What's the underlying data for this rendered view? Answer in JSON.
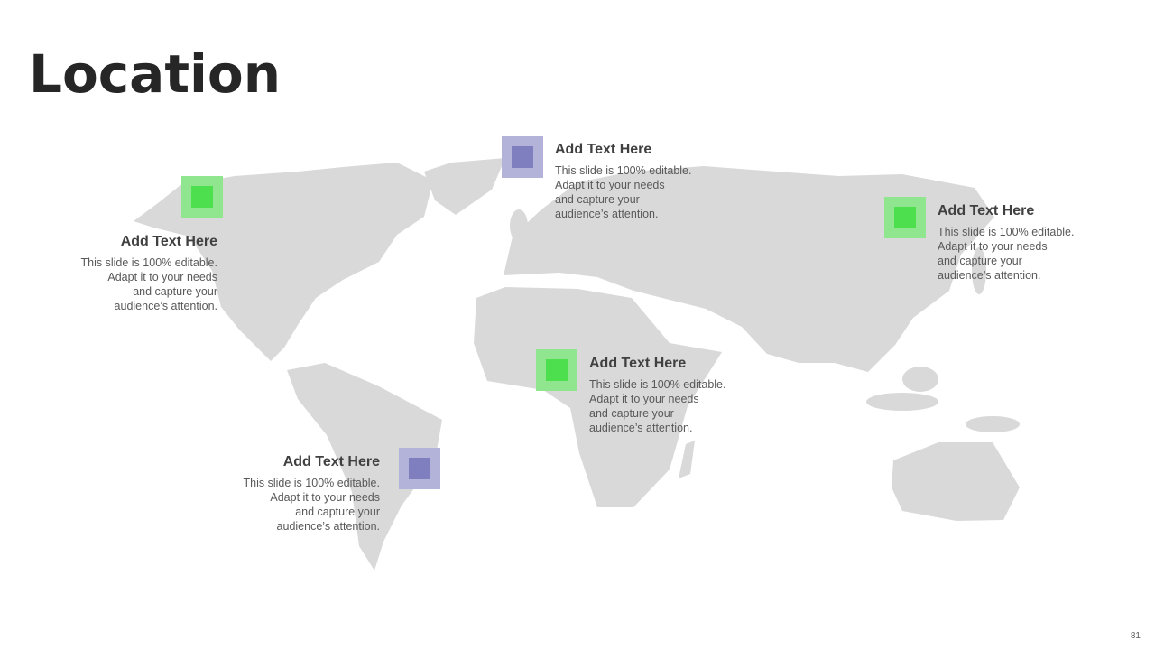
{
  "title": "Location",
  "page_number": "81",
  "colors": {
    "map": "#d9d9d9",
    "purple_outer": "#b3b3da",
    "purple_inner": "#7f7fbf",
    "green_outer": "#8fe68f",
    "green_inner": "#4ddf4d"
  },
  "markers": [
    {
      "heading": "Add Text Here",
      "body": "This slide is 100% editable.\nAdapt it to your needs\nand capture your\naudience’s attention.",
      "color": "green"
    },
    {
      "heading": "Add Text Here",
      "body": "This slide is 100% editable.\nAdapt it to your needs\nand capture your\naudience’s attention.",
      "color": "purple"
    },
    {
      "heading": "Add Text Here",
      "body": "This slide is 100% editable.\nAdapt it to your needs\nand capture your\naudience’s attention.",
      "color": "green"
    },
    {
      "heading": "Add Text Here",
      "body": "This slide is 100% editable.\nAdapt it to your needs\nand capture your\naudience’s attention.",
      "color": "green"
    },
    {
      "heading": "Add Text Here",
      "body": "This slide is 100% editable.\nAdapt it to your needs\nand capture your\naudience’s attention.",
      "color": "purple"
    }
  ]
}
